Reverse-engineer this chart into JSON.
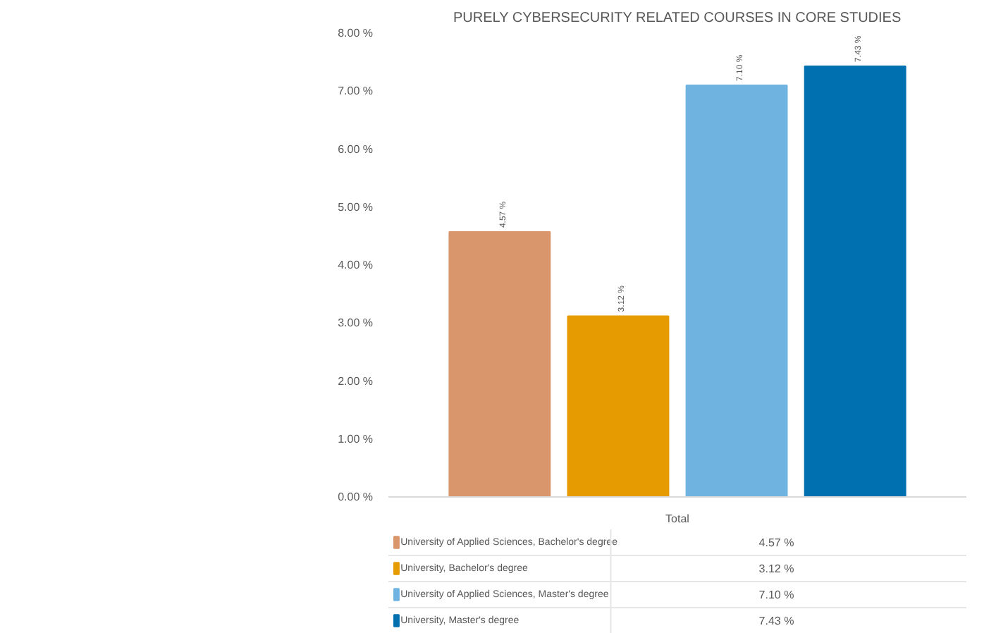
{
  "chart_data": {
    "type": "bar",
    "title": "PURELY CYBERSECURITY RELATED COURSES IN CORE STUDIES",
    "categories": [
      "Total"
    ],
    "series": [
      {
        "name": "University of Applied Sciences, Bachelor's degree",
        "color": "#d9956b",
        "values": [
          4.57
        ],
        "value_labels": [
          "4.57 %"
        ]
      },
      {
        "name": "University, Bachelor's degree",
        "color": "#e69c00",
        "values": [
          3.12
        ],
        "value_labels": [
          "3.12 %"
        ]
      },
      {
        "name": "University of Applied Sciences, Master's degree",
        "color": "#6fb3e0",
        "values": [
          7.1
        ],
        "value_labels": [
          "7.10 %"
        ]
      },
      {
        "name": "University, Master's degree",
        "color": "#0070b0",
        "values": [
          7.43
        ],
        "value_labels": [
          "7.43 %"
        ]
      }
    ],
    "ylim": [
      0,
      8
    ],
    "yticks": [
      {
        "value": 0,
        "label": "0.00 %"
      },
      {
        "value": 1,
        "label": "1.00 %"
      },
      {
        "value": 2,
        "label": "2.00 %"
      },
      {
        "value": 3,
        "label": "3.00 %"
      },
      {
        "value": 4,
        "label": "4.00 %"
      },
      {
        "value": 5,
        "label": "5.00 %"
      },
      {
        "value": 6,
        "label": "6.00 %"
      },
      {
        "value": 7,
        "label": "7.00 %"
      },
      {
        "value": 8,
        "label": "8.00 %"
      }
    ],
    "grid": false,
    "legend": "bottom"
  }
}
